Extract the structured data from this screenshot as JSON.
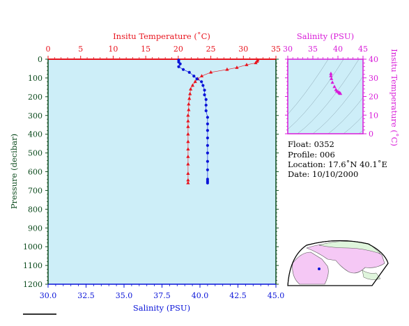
{
  "colors": {
    "temperature": "#e8141e",
    "salinity": "#0a14d8",
    "ts_plot": "#d81ad8",
    "pressure_axis": "#0b4a1c",
    "plot_bg": "#cdeef8",
    "land": "#f5c8f5",
    "land_green": "#dff5dc"
  },
  "titles": {
    "temperature_axis": "Insitu Temperature (˚C)",
    "salinity_axis": "Salinity (PSU)",
    "pressure_axis": "Pressure (decibar)",
    "ts_top_axis": "Salinity (PSU)",
    "ts_right_axis": "Insitu Temperature (˚C)"
  },
  "info": {
    "float": "Float:  0352",
    "profile": "Profile:  006",
    "location": "Location:  17.6˚N  40.1˚E",
    "date": "Date:  10/10/2000"
  },
  "chart_data": [
    {
      "type": "line",
      "name": "profile",
      "pressure_axis": {
        "label": "Pressure (decibar)",
        "range": [
          0,
          1200
        ],
        "ticks": [
          0,
          100,
          200,
          300,
          400,
          500,
          600,
          700,
          800,
          900,
          1000,
          1100,
          1200
        ],
        "inverted": true
      },
      "temperature_axis": {
        "label": "Insitu Temperature (˚C)",
        "range": [
          0,
          35
        ],
        "ticks": [
          0,
          5,
          10,
          15,
          20,
          25,
          30,
          35
        ],
        "position": "top"
      },
      "salinity_axis": {
        "label": "Salinity (PSU)",
        "range": [
          30.0,
          45.0
        ],
        "ticks": [
          "30.0",
          "32.5",
          "35.0",
          "37.5",
          "40.0",
          "42.5",
          "45.0"
        ],
        "position": "bottom"
      },
      "series": [
        {
          "name": "temperature",
          "marker": "triangle",
          "points": [
            {
              "p": 5,
              "v": 32.2
            },
            {
              "p": 12,
              "v": 32.1
            },
            {
              "p": 20,
              "v": 31.9
            },
            {
              "p": 30,
              "v": 30.5
            },
            {
              "p": 45,
              "v": 29.0
            },
            {
              "p": 55,
              "v": 27.5
            },
            {
              "p": 70,
              "v": 25.0
            },
            {
              "p": 90,
              "v": 23.6
            },
            {
              "p": 105,
              "v": 23.0
            },
            {
              "p": 120,
              "v": 22.6
            },
            {
              "p": 140,
              "v": 22.2
            },
            {
              "p": 160,
              "v": 21.9
            },
            {
              "p": 185,
              "v": 21.8
            },
            {
              "p": 210,
              "v": 21.7
            },
            {
              "p": 240,
              "v": 21.6
            },
            {
              "p": 270,
              "v": 21.6
            },
            {
              "p": 300,
              "v": 21.5
            },
            {
              "p": 330,
              "v": 21.5
            },
            {
              "p": 360,
              "v": 21.5
            },
            {
              "p": 400,
              "v": 21.5
            },
            {
              "p": 440,
              "v": 21.5
            },
            {
              "p": 480,
              "v": 21.5
            },
            {
              "p": 520,
              "v": 21.5
            },
            {
              "p": 560,
              "v": 21.5
            },
            {
              "p": 610,
              "v": 21.5
            },
            {
              "p": 645,
              "v": 21.5
            },
            {
              "p": 660,
              "v": 21.5
            }
          ]
        },
        {
          "name": "salinity",
          "marker": "circle",
          "points": [
            {
              "p": 5,
              "v": 38.6
            },
            {
              "p": 15,
              "v": 38.6
            },
            {
              "p": 25,
              "v": 38.7
            },
            {
              "p": 40,
              "v": 38.6
            },
            {
              "p": 55,
              "v": 38.9
            },
            {
              "p": 70,
              "v": 39.3
            },
            {
              "p": 90,
              "v": 39.6
            },
            {
              "p": 105,
              "v": 39.8
            },
            {
              "p": 120,
              "v": 40.1
            },
            {
              "p": 140,
              "v": 40.2
            },
            {
              "p": 165,
              "v": 40.3
            },
            {
              "p": 190,
              "v": 40.3
            },
            {
              "p": 215,
              "v": 40.4
            },
            {
              "p": 245,
              "v": 40.4
            },
            {
              "p": 275,
              "v": 40.4
            },
            {
              "p": 310,
              "v": 40.5
            },
            {
              "p": 345,
              "v": 40.5
            },
            {
              "p": 380,
              "v": 40.5
            },
            {
              "p": 420,
              "v": 40.5
            },
            {
              "p": 460,
              "v": 40.5
            },
            {
              "p": 500,
              "v": 40.5
            },
            {
              "p": 545,
              "v": 40.5
            },
            {
              "p": 590,
              "v": 40.5
            },
            {
              "p": 640,
              "v": 40.5
            },
            {
              "p": 650,
              "v": 40.5
            },
            {
              "p": 660,
              "v": 40.5
            }
          ]
        }
      ]
    },
    {
      "type": "scatter",
      "name": "t-s diagram",
      "x_axis": {
        "label": "Salinity (PSU)",
        "range": [
          30,
          45
        ],
        "ticks": [
          30,
          35,
          40,
          45
        ],
        "position": "top"
      },
      "y_axis": {
        "label": "Insitu Temperature (˚C)",
        "range": [
          0,
          40
        ],
        "ticks": [
          0,
          10,
          20,
          30,
          40
        ],
        "position": "right"
      },
      "points": [
        {
          "s": 38.6,
          "t": 32.2
        },
        {
          "s": 38.6,
          "t": 31.0
        },
        {
          "s": 38.7,
          "t": 29.5
        },
        {
          "s": 38.9,
          "t": 27.5
        },
        {
          "s": 39.3,
          "t": 25.2
        },
        {
          "s": 39.6,
          "t": 23.6
        },
        {
          "s": 39.8,
          "t": 22.8
        },
        {
          "s": 40.1,
          "t": 22.3
        },
        {
          "s": 40.3,
          "t": 21.9
        },
        {
          "s": 40.4,
          "t": 21.7
        },
        {
          "s": 40.5,
          "t": 21.5
        }
      ]
    }
  ]
}
